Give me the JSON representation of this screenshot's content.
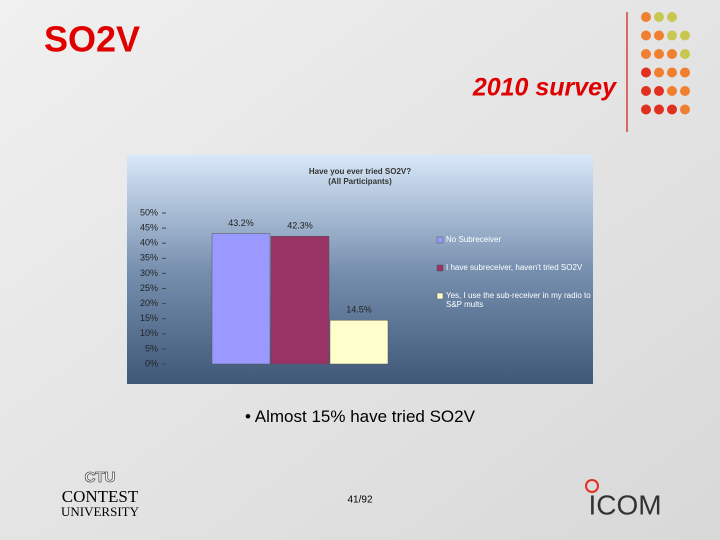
{
  "slide_title": "SO2V",
  "slide_subtitle": "2010 survey",
  "bullet": "Almost 15% have tried SO2V",
  "page_number": "41/92",
  "logos": {
    "ctu": "CTU",
    "contest": "CONTEST",
    "university": "UNIVERSITY",
    "icom": "ICOM"
  },
  "chart_data": {
    "type": "bar",
    "title": "Have you ever tried SO2V?",
    "subtitle": "(All Participants)",
    "categories": [
      null
    ],
    "series": [
      {
        "name": "No Subreceiver",
        "color": "#9999ff",
        "values": [
          43.2
        ],
        "value_labels": [
          "43.2%"
        ]
      },
      {
        "name": "I have subreceiver, haven't tried SO2V",
        "color": "#993366",
        "values": [
          42.3
        ],
        "value_labels": [
          "42.3%"
        ]
      },
      {
        "name": "Yes, I use the sub-receiver in my radio to S&P mults",
        "color": "#ffffcc",
        "values": [
          14.5
        ],
        "value_labels": [
          "14.5%"
        ]
      }
    ],
    "ylim": [
      0,
      50
    ],
    "yticks": [
      {
        "value": 0,
        "label": "0%"
      },
      {
        "value": 5,
        "label": "5%"
      },
      {
        "value": 10,
        "label": "10%"
      },
      {
        "value": 15,
        "label": "15%"
      },
      {
        "value": 20,
        "label": "20%"
      },
      {
        "value": 25,
        "label": "25%"
      },
      {
        "value": 30,
        "label": "30%"
      },
      {
        "value": 35,
        "label": "35%"
      },
      {
        "value": 40,
        "label": "40%"
      },
      {
        "value": 45,
        "label": "45%"
      },
      {
        "value": 50,
        "label": "50%"
      }
    ],
    "legend": "right"
  }
}
